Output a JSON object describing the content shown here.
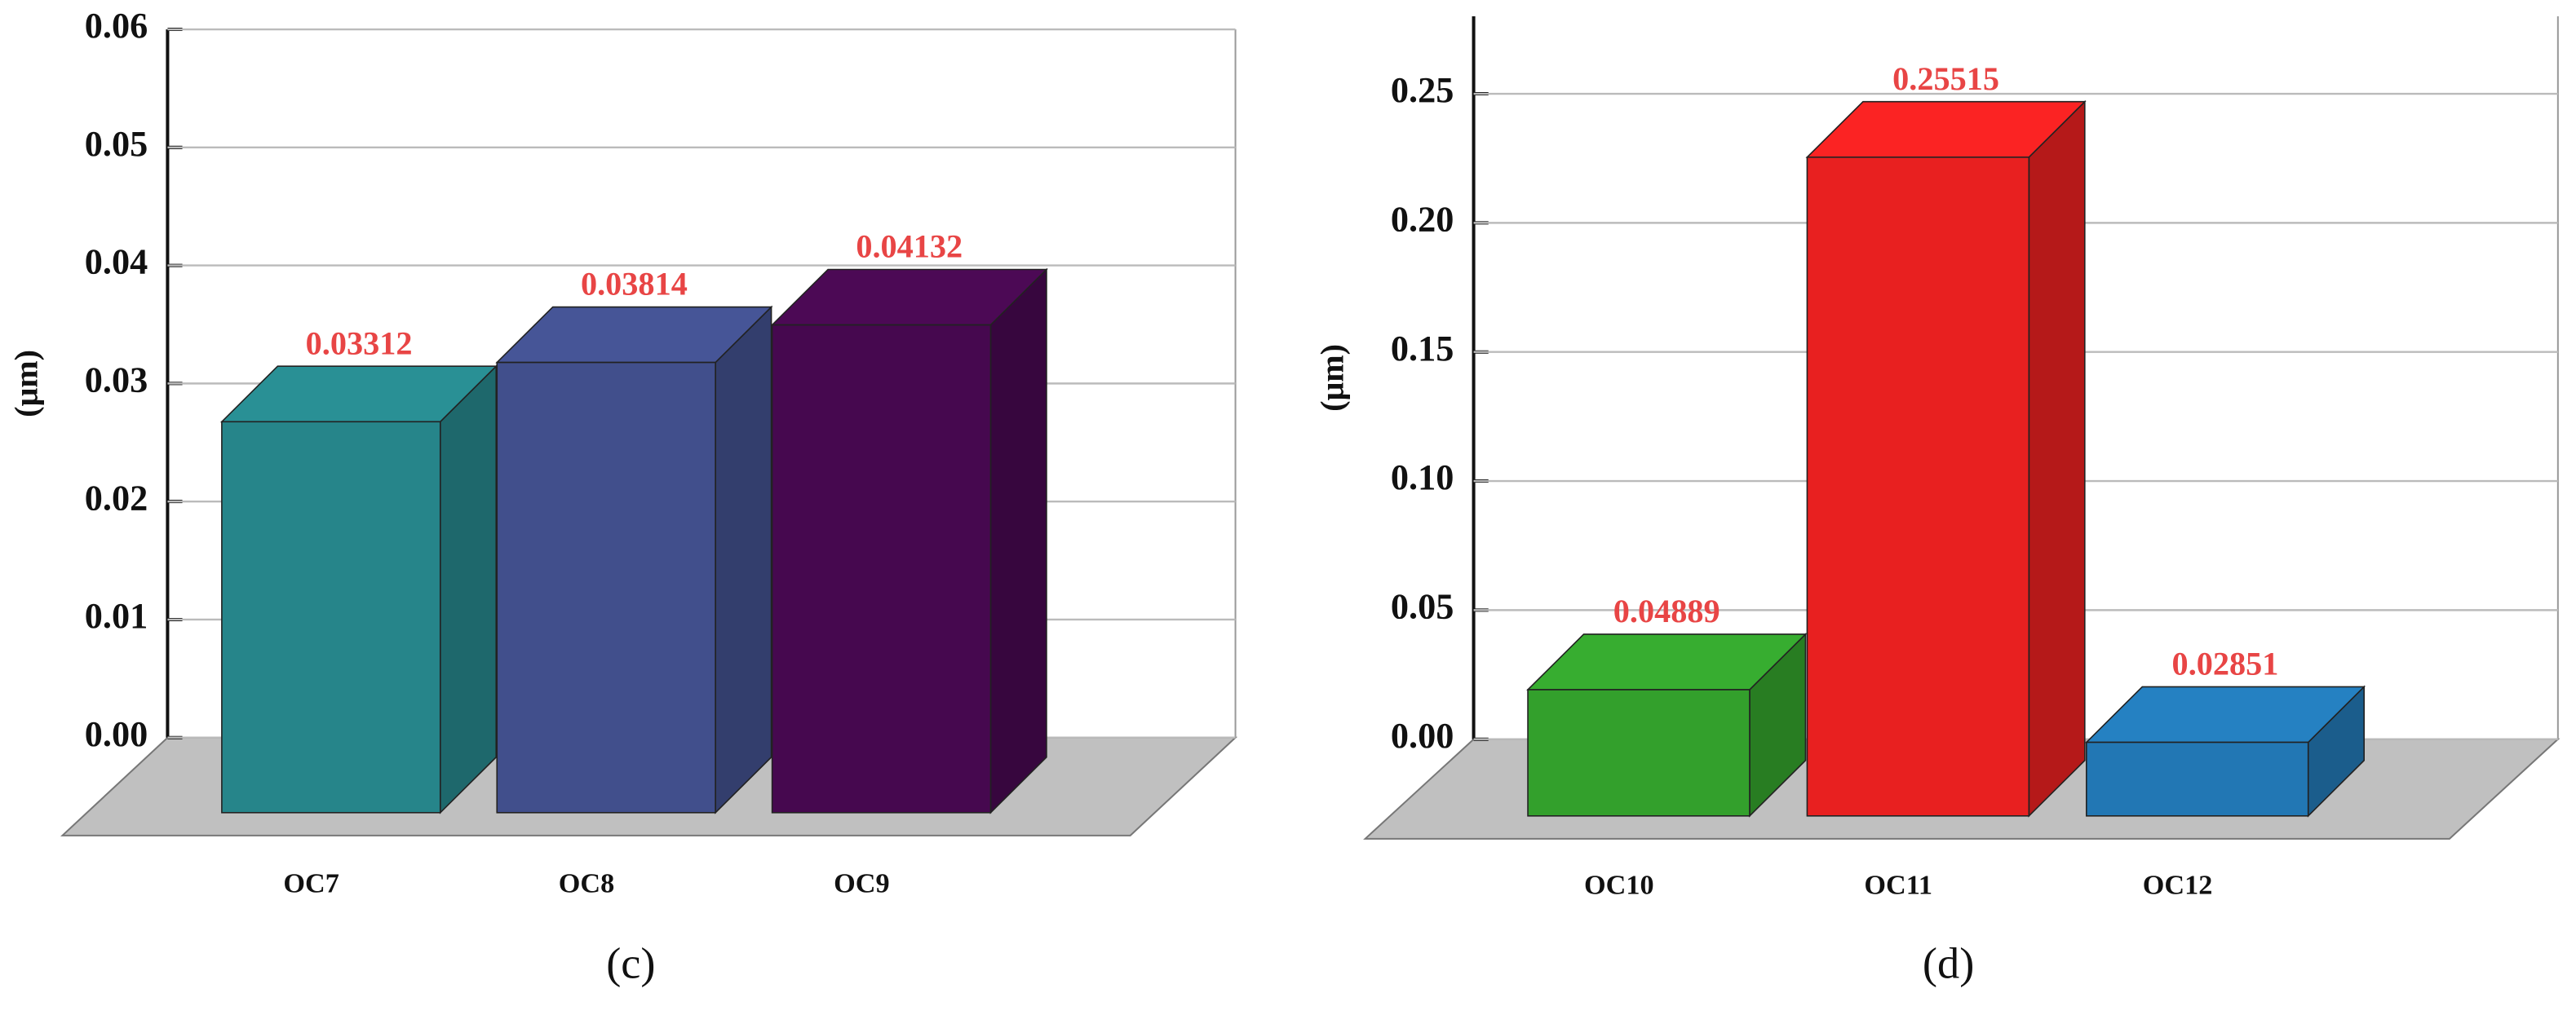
{
  "chart_data": [
    {
      "type": "bar3d",
      "y_label": "(μm)",
      "caption": "(c)",
      "categories": [
        "OC7",
        "OC8",
        "OC9"
      ],
      "values": [
        0.03312,
        0.03814,
        0.04132
      ],
      "colors": [
        "#26858a",
        "#414f8c",
        "#46084f"
      ],
      "ylim": [
        0,
        0.06
      ],
      "yticks": [
        {
          "value": 0,
          "label": "0.00"
        },
        0.01,
        0.02,
        0.03,
        0.04,
        0.05,
        0.06
      ],
      "grid": true
    },
    {
      "type": "bar3d",
      "y_label": "(μm)",
      "caption": "(d)",
      "categories": [
        "OC10",
        "OC11",
        "OC12"
      ],
      "values": [
        0.04889,
        0.25515,
        0.02851
      ],
      "colors": [
        "#33a02c",
        "#e82020",
        "#2277b4"
      ],
      "ylim": [
        0,
        0.28
      ],
      "yticks": [
        {
          "value": 0,
          "label": "0.00"
        },
        0.05,
        {
          "value": 0.1,
          "label": "0.10"
        },
        0.15,
        {
          "value": 0.2,
          "label": "0.20"
        },
        0.25
      ],
      "grid": true
    }
  ]
}
